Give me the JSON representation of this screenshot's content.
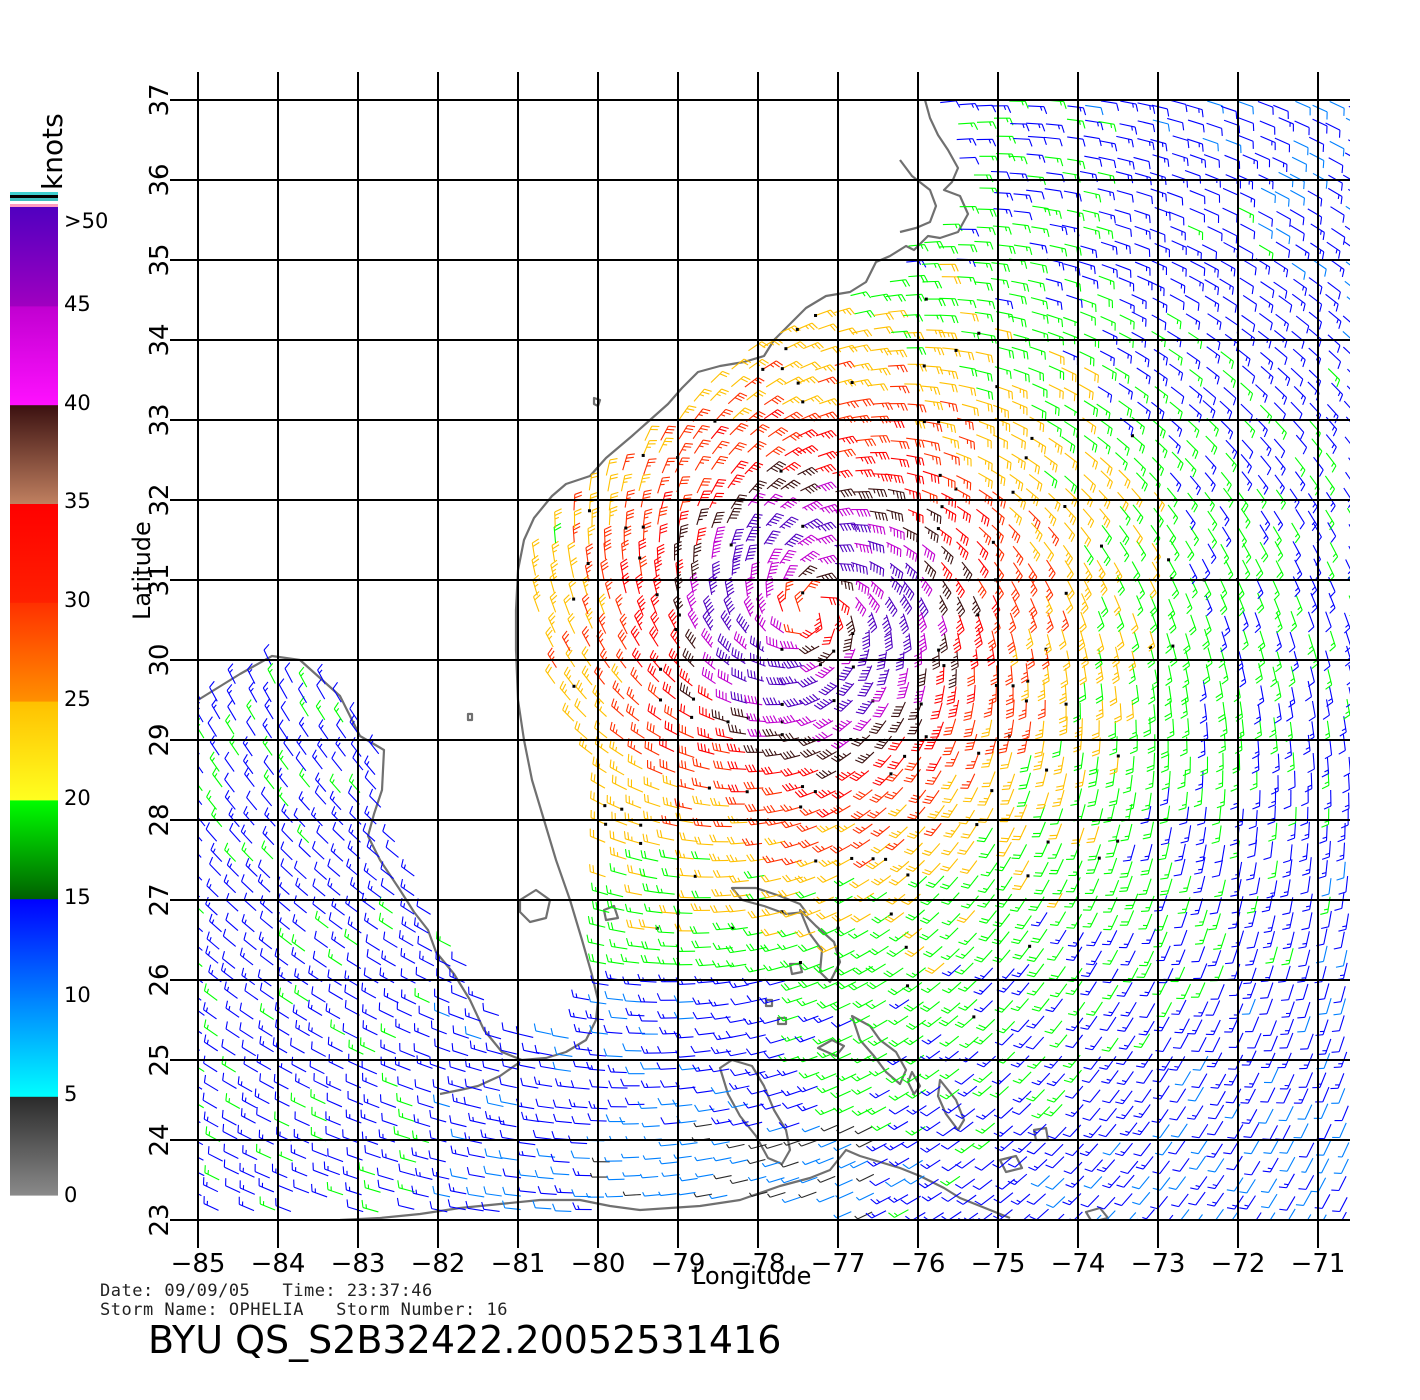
{
  "map": {
    "xlabel": "Longitude",
    "ylabel": "Latitude",
    "lon_range": [
      -85,
      -71
    ],
    "lat_range": [
      23,
      37
    ],
    "lon_ticks": [
      "−85",
      "−84",
      "−83",
      "−82",
      "−81",
      "−80",
      "−79",
      "−78",
      "−77",
      "−76",
      "−75",
      "−74",
      "−73",
      "−72",
      "−71"
    ],
    "lat_ticks": [
      "23",
      "24",
      "25",
      "26",
      "27",
      "28",
      "29",
      "30",
      "31",
      "32",
      "33",
      "34",
      "35",
      "36",
      "37"
    ],
    "grid": true,
    "storm_center": {
      "lon": -77.3,
      "lat": 30.6
    },
    "field": "wind barbs",
    "coast_color": "#707070"
  },
  "colorbar": {
    "units": "knots",
    "labels": [
      "0",
      "5",
      "10",
      "15",
      "20",
      "25",
      "30",
      "35",
      "40",
      "45",
      ">50"
    ],
    "stops": [
      {
        "from": 0,
        "to": 5,
        "colors": [
          "#8a8a8a",
          "#2a2a2a"
        ]
      },
      {
        "from": 5,
        "to": 10,
        "colors": [
          "#00ffff",
          "#0080ff"
        ]
      },
      {
        "from": 10,
        "to": 15,
        "colors": [
          "#0080ff",
          "#0000ff"
        ]
      },
      {
        "from": 15,
        "to": 20,
        "colors": [
          "#006000",
          "#00ff00"
        ]
      },
      {
        "from": 20,
        "to": 25,
        "colors": [
          "#ffff20",
          "#ffc000"
        ]
      },
      {
        "from": 25,
        "to": 30,
        "colors": [
          "#ff9000",
          "#ff3000"
        ]
      },
      {
        "from": 30,
        "to": 35,
        "colors": [
          "#ff2000",
          "#ff0000"
        ]
      },
      {
        "from": 35,
        "to": 40,
        "colors": [
          "#c08060",
          "#3a1010"
        ]
      },
      {
        "from": 40,
        "to": 45,
        "colors": [
          "#ff10ff",
          "#c000d0"
        ]
      },
      {
        "from": 45,
        "to": 50,
        "colors": [
          "#a000c0",
          "#5000c0"
        ]
      }
    ]
  },
  "info": {
    "line1": "Date: 09/09/05   Time: 23:37:46",
    "line2": "Storm Name: OPHELIA   Storm Number: 16"
  },
  "title": "BYU QS_S2B32422.20052531416"
}
